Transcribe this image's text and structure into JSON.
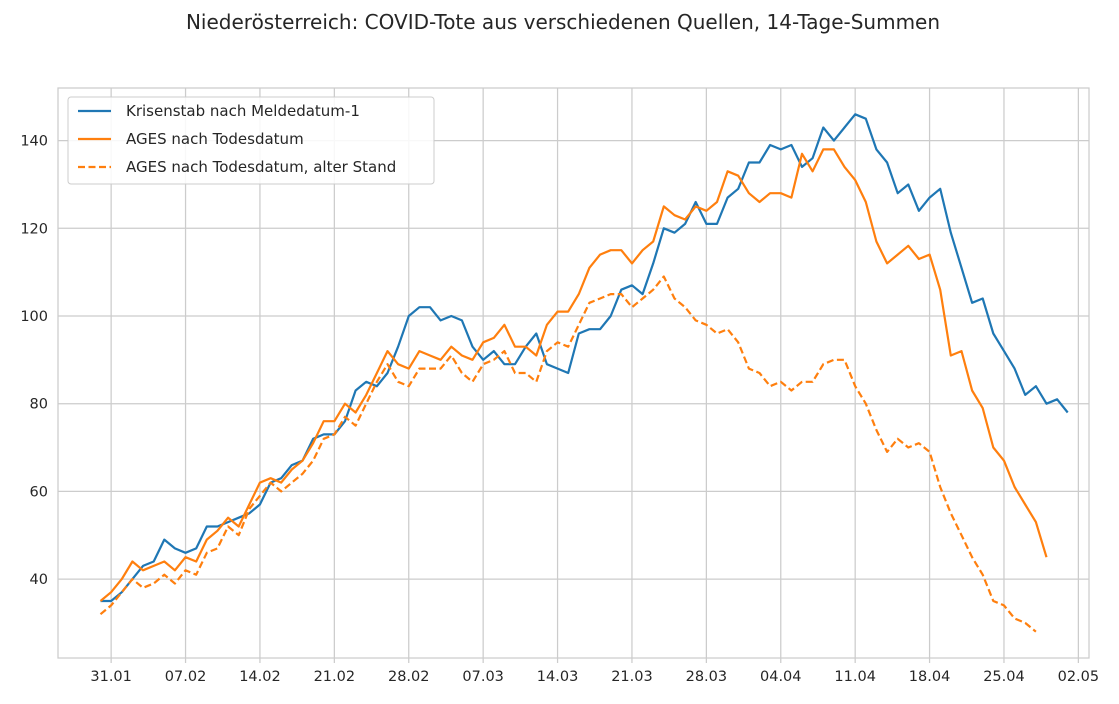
{
  "chart_data": {
    "type": "line",
    "title": "Niederösterreich: COVID-Tote aus verschiedenen Quellen, 14-Tage-Summen",
    "xlabel": "",
    "ylabel": "",
    "x_start": "2021-01-30",
    "x_ticks": [
      "31.01",
      "07.02",
      "14.02",
      "21.02",
      "28.02",
      "07.03",
      "14.03",
      "21.03",
      "28.03",
      "04.04",
      "11.04",
      "18.04",
      "25.04",
      "02.05"
    ],
    "y_ticks": [
      40,
      60,
      80,
      100,
      120,
      140
    ],
    "xlim": [
      "2021-01-26",
      "2021-05-03"
    ],
    "ylim": [
      22,
      152
    ],
    "grid": true,
    "legend_position": "top-left",
    "colors": {
      "blue": "#1f77b4",
      "orange": "#ff7f0e",
      "grid": "#cccccc",
      "axes": "#cccccc"
    },
    "series": [
      {
        "name": "Krisenstab nach Meldedatum-1",
        "color": "#1f77b4",
        "style": "solid",
        "values": [
          35,
          35,
          37,
          40,
          43,
          44,
          49,
          47,
          46,
          47,
          52,
          52,
          53,
          54,
          55,
          57,
          62,
          63,
          66,
          67,
          72,
          73,
          73,
          76,
          83,
          85,
          84,
          87,
          93,
          100,
          102,
          102,
          99,
          100,
          99,
          93,
          90,
          92,
          89,
          89,
          93,
          96,
          89,
          88,
          87,
          96,
          97,
          97,
          100,
          106,
          107,
          105,
          112,
          120,
          119,
          121,
          126,
          121,
          121,
          127,
          129,
          135,
          135,
          139,
          138,
          139,
          134,
          136,
          143,
          140,
          143,
          146,
          145,
          138,
          135,
          128,
          130,
          124,
          127,
          129,
          119,
          111,
          103,
          104,
          96,
          92,
          88,
          82,
          84,
          80,
          81,
          78
        ]
      },
      {
        "name": "AGES nach Todesdatum",
        "color": "#ff7f0e",
        "style": "solid",
        "values": [
          35,
          37,
          40,
          44,
          42,
          43,
          44,
          42,
          45,
          44,
          49,
          51,
          54,
          52,
          57,
          62,
          63,
          62,
          65,
          67,
          71,
          76,
          76,
          80,
          78,
          82,
          87,
          92,
          89,
          88,
          92,
          91,
          90,
          93,
          91,
          90,
          94,
          95,
          98,
          93,
          93,
          91,
          98,
          101,
          101,
          105,
          111,
          114,
          115,
          115,
          112,
          115,
          117,
          125,
          123,
          122,
          125,
          124,
          126,
          133,
          132,
          128,
          126,
          128,
          128,
          127,
          137,
          133,
          138,
          138,
          134,
          131,
          126,
          117,
          112,
          114,
          116,
          113,
          114,
          106,
          91,
          92,
          83,
          79,
          70,
          67,
          61,
          57,
          53,
          45
        ]
      },
      {
        "name": "AGES nach Todesdatum, alter Stand",
        "color": "#ff7f0e",
        "style": "dashed",
        "values": [
          32,
          34,
          37,
          40,
          38,
          39,
          41,
          39,
          42,
          41,
          46,
          47,
          52,
          50,
          56,
          59,
          62,
          60,
          62,
          64,
          67,
          72,
          73,
          77,
          75,
          80,
          85,
          89,
          85,
          84,
          88,
          88,
          88,
          91,
          87,
          85,
          89,
          90,
          92,
          87,
          87,
          85,
          92,
          94,
          93,
          98,
          103,
          104,
          105,
          105,
          102,
          104,
          106,
          109,
          104,
          102,
          99,
          98,
          96,
          97,
          94,
          88,
          87,
          84,
          85,
          83,
          85,
          85,
          89,
          90,
          90,
          84,
          80,
          74,
          69,
          72,
          70,
          71,
          69,
          61,
          55,
          50,
          45,
          41,
          35,
          34,
          31,
          30,
          28
        ]
      }
    ]
  }
}
